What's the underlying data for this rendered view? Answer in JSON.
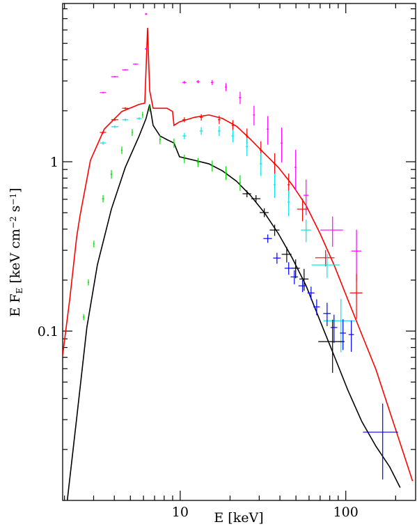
{
  "chart_data": {
    "type": "scatter",
    "xlabel": "E [keV]",
    "ylabel": [
      {
        "text": "E F",
        "shift": "none"
      },
      {
        "text": "E",
        "shift": "sub"
      },
      {
        "text": " [keV cm",
        "shift": "none"
      },
      {
        "text": "−2",
        "shift": "sup"
      },
      {
        "text": " s",
        "shift": "none"
      },
      {
        "text": "−1",
        "shift": "sup"
      },
      {
        "text": "]",
        "shift": "none"
      }
    ],
    "xlog": true,
    "ylog": true,
    "xlim": [
      1.95,
      264
    ],
    "ylim": [
      0.01,
      8.6
    ],
    "xticks": [
      10,
      100
    ],
    "yticks": [
      0.1,
      1
    ],
    "xminorticks": [
      2,
      3,
      4,
      5,
      6,
      7,
      8,
      9,
      20,
      30,
      40,
      50,
      60,
      70,
      80,
      90,
      200
    ],
    "yminorticks": [
      0.02,
      0.03,
      0.04,
      0.05,
      0.06,
      0.07,
      0.08,
      0.09,
      0.2,
      0.3,
      0.4,
      0.5,
      0.6,
      0.7,
      0.8,
      0.9,
      2,
      3,
      4,
      5,
      6,
      7,
      8
    ],
    "models": [
      {
        "color": "#ff0000",
        "x": [
          1.95,
          2.15,
          2.37,
          2.48,
          2.87,
          3.48,
          4.44,
          5.65,
          6.11,
          6.35,
          6.54,
          6.86,
          8.32,
          8.99,
          9.17,
          9.9,
          12.2,
          14.9,
          18,
          21.9,
          26.5,
          32.2,
          39.1,
          47.4,
          57.6,
          69.9,
          84.9,
          103,
          125,
          152,
          184,
          223,
          253
        ],
        "values": [
          0.072,
          0.153,
          0.36,
          0.478,
          1.02,
          1.56,
          1.98,
          2.18,
          2.22,
          6.17,
          2.63,
          2.07,
          2.07,
          1.98,
          1.64,
          1.72,
          1.83,
          1.89,
          1.8,
          1.62,
          1.36,
          1.12,
          0.927,
          0.732,
          0.551,
          0.377,
          0.246,
          0.153,
          0.0954,
          0.0594,
          0.0336,
          0.019,
          0.013
        ]
      },
      {
        "color": "#000000",
        "x": [
          2.08,
          2.37,
          2.73,
          3.16,
          3.84,
          4.66,
          5.65,
          6.22,
          6.54,
          6.86,
          7.55,
          8.32,
          9.17,
          9.9,
          12.2,
          14.9,
          18,
          21.9,
          26.5,
          32.2,
          39.1,
          47.4,
          57.6,
          69.9,
          84.9,
          103,
          125,
          152,
          184,
          213
        ],
        "values": [
          0.01,
          0.0306,
          0.105,
          0.246,
          0.525,
          0.927,
          1.42,
          1.8,
          2.18,
          1.64,
          1.42,
          1.35,
          1.29,
          1.07,
          1.02,
          0.972,
          0.883,
          0.767,
          0.634,
          0.501,
          0.377,
          0.271,
          0.185,
          0.115,
          0.0718,
          0.0447,
          0.0292,
          0.0209,
          0.0158,
          0.0119
        ]
      }
    ],
    "series": [
      {
        "color": "#ff00ff",
        "x": [
          3.42,
          4.03,
          4.66,
          5.38,
          6.22,
          6.22,
          10.6,
          12.8,
          15.6,
          18.9,
          23.0,
          27.9,
          33.8,
          41.0,
          49.8,
          57.6,
          83.2,
          116
        ],
        "values": [
          2.56,
          3.18,
          3.49,
          3.77,
          7.45,
          4.64,
          2.94,
          2.97,
          2.94,
          2.76,
          2.39,
          1.89,
          1.56,
          1.29,
          0.927,
          0.634,
          0.395,
          0.297
        ],
        "xerr": [
          0.15,
          0.2,
          0.2,
          0.2,
          0.1,
          0.1,
          0.3,
          0.3,
          0.3,
          0.3,
          0.4,
          0.4,
          0.5,
          0.6,
          0.8,
          2,
          13,
          8
        ],
        "yerr": [
          0.03,
          0.03,
          0.03,
          0.03,
          0.1,
          0.05,
          0.06,
          0.06,
          0.1,
          0.15,
          0.2,
          0.25,
          0.3,
          0.3,
          0.25,
          0.15,
          0.08,
          0.1
        ]
      },
      {
        "color": "#ff0000",
        "x": [
          3.42,
          4.03,
          4.66,
          10.6,
          13.4,
          17.2,
          20.8,
          25.3,
          30.7,
          37.2,
          45.2,
          54.8,
          75.5,
          116
        ],
        "values": [
          1.49,
          1.77,
          2.07,
          1.77,
          1.83,
          1.77,
          1.64,
          1.42,
          1.17,
          0.972,
          0.732,
          0.525,
          0.271,
          0.168
        ],
        "xerr": [
          0.15,
          0.2,
          0.2,
          0.3,
          0.3,
          0.3,
          0.4,
          0.4,
          0.5,
          0.6,
          0.8,
          4,
          10,
          10
        ],
        "yerr": [
          0.03,
          0.03,
          0.03,
          0.06,
          0.08,
          0.1,
          0.12,
          0.15,
          0.15,
          0.15,
          0.12,
          0.08,
          0.03,
          0.05
        ]
      },
      {
        "color": "#00e5e5",
        "x": [
          3.42,
          4.03,
          4.66,
          5.65,
          10.6,
          13.4,
          17.2,
          20.8,
          25.3,
          30.7,
          37.2,
          45.2,
          57.6,
          77.1,
          93.5
        ],
        "values": [
          1.29,
          1.61,
          1.77,
          1.8,
          1.42,
          1.52,
          1.52,
          1.42,
          1.23,
          0.972,
          0.732,
          0.577,
          0.395,
          0.246,
          0.115
        ],
        "xerr": [
          0.15,
          0.2,
          0.2,
          0.2,
          0.3,
          0.3,
          0.3,
          0.4,
          0.4,
          0.5,
          0.6,
          0.8,
          4,
          15,
          20
        ],
        "yerr": [
          0.03,
          0.03,
          0.03,
          0.03,
          0.06,
          0.08,
          0.1,
          0.12,
          0.15,
          0.15,
          0.12,
          0.1,
          0.06,
          0.04,
          0.04
        ]
      },
      {
        "color": "#00dd00",
        "x": [
          2.61,
          2.79,
          3.01,
          3.42,
          3.84,
          4.44,
          5.13,
          5.93,
          6.54,
          7.55,
          9.17,
          10.6,
          12.8,
          15.6,
          18.9,
          23.0
        ],
        "values": [
          0.121,
          0.194,
          0.327,
          0.605,
          0.843,
          1.17,
          1.49,
          1.89,
          2.07,
          1.35,
          1.29,
          1.04,
          0.991,
          0.945,
          0.86,
          0.753
        ],
        "xerr": [
          0.03,
          0.03,
          0.03,
          0.05,
          0.05,
          0.05,
          0.05,
          0.05,
          0.05,
          0.08,
          0.1,
          0.15,
          0.2,
          0.2,
          0.3,
          0.3
        ],
        "yerr": [
          0.005,
          0.008,
          0.015,
          0.03,
          0.05,
          0.06,
          0.07,
          0.08,
          0.1,
          0.08,
          0.08,
          0.06,
          0.06,
          0.07,
          0.08,
          0.08
        ]
      },
      {
        "color": "#000000",
        "x": [
          25.3,
          28.7,
          32.2,
          37.2,
          44.0,
          49.8,
          56.0,
          83.2
        ],
        "values": [
          0.647,
          0.605,
          0.501,
          0.395,
          0.284,
          0.235,
          0.203,
          0.0867
        ],
        "xerr": [
          1.5,
          1.8,
          2,
          2.5,
          3,
          3,
          3.5,
          15
        ],
        "yerr": [
          0.03,
          0.03,
          0.03,
          0.03,
          0.03,
          0.03,
          0.03,
          0.03
        ]
      },
      {
        "color": "#0000ff",
        "x": [
          33.8,
          38.4,
          45.2,
          48.9,
          54.8,
          61.7,
          66.7,
          77.1,
          84.9,
          96.2,
          108,
          167
        ],
        "values": [
          0.352,
          0.27,
          0.235,
          0.209,
          0.185,
          0.168,
          0.139,
          0.127,
          0.105,
          0.0973,
          0.0954,
          0.0253
        ],
        "xerr": [
          2,
          2,
          2.5,
          2.5,
          3,
          3,
          3,
          4,
          4,
          4,
          4,
          40
        ],
        "yerr": [
          0.02,
          0.02,
          0.02,
          0.02,
          0.015,
          0.015,
          0.015,
          0.02,
          0.02,
          0.02,
          0.02,
          0.012
        ]
      }
    ]
  }
}
